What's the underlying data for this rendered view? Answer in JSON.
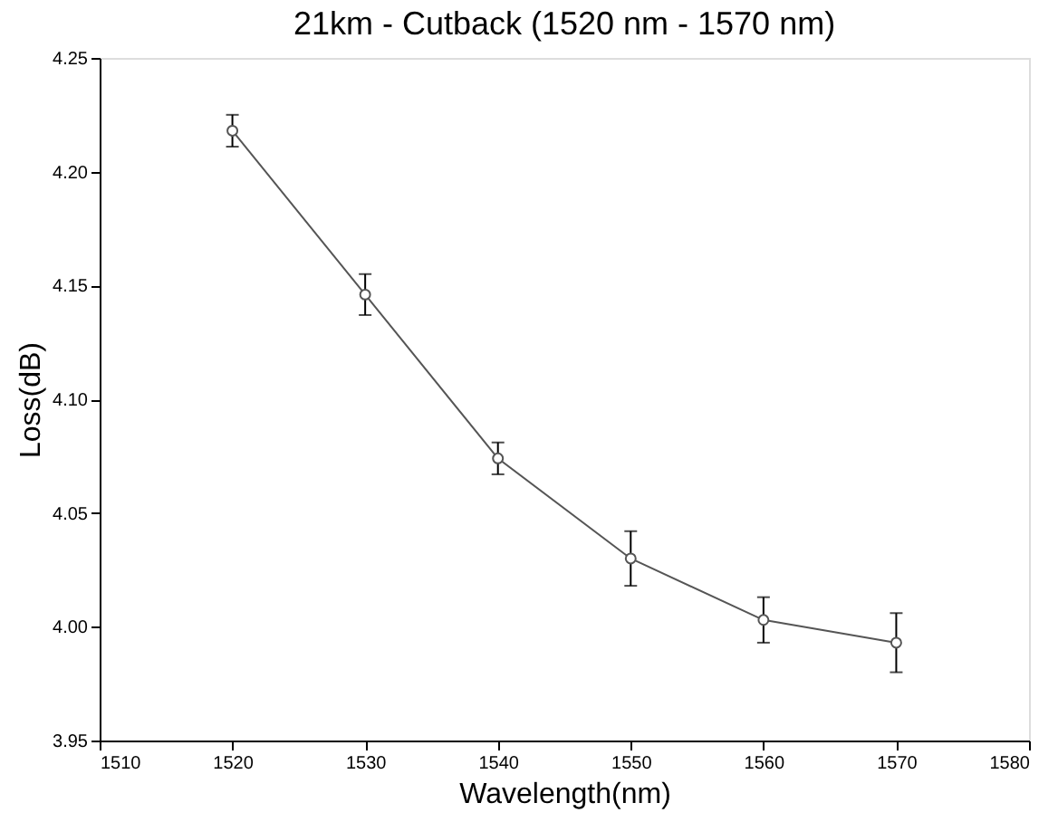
{
  "chart_data": {
    "type": "line",
    "title": "21km - Cutback (1520 nm - 1570 nm)",
    "xlabel": "Wavelength(nm)",
    "ylabel": "Loss(dB)",
    "x": [
      1520,
      1530,
      1540,
      1550,
      1560,
      1570
    ],
    "series": [
      {
        "color": "#555555",
        "values": [
          4.218,
          4.146,
          4.074,
          4.03,
          4.003,
          3.993
        ],
        "errors": [
          0.007,
          0.009,
          0.007,
          0.012,
          0.01,
          0.013
        ]
      }
    ],
    "xlim": [
      1510,
      1580
    ],
    "xticks": [
      1510,
      1520,
      1530,
      1540,
      1550,
      1560,
      1570,
      1580
    ],
    "ylim": [
      3.95,
      4.25
    ],
    "yticks": [
      {
        "value": 3.95,
        "label": "3.95"
      },
      {
        "value": 4.0,
        "label": "4.00"
      },
      {
        "value": 4.05,
        "label": "4.05"
      },
      {
        "value": 4.1,
        "label": "4.10"
      },
      {
        "value": 4.15,
        "label": "4.15"
      },
      {
        "value": 4.2,
        "label": "4.20"
      },
      {
        "value": 4.25,
        "label": "4.25"
      }
    ],
    "grid": false,
    "marker": "circle",
    "line_style": "solid"
  }
}
